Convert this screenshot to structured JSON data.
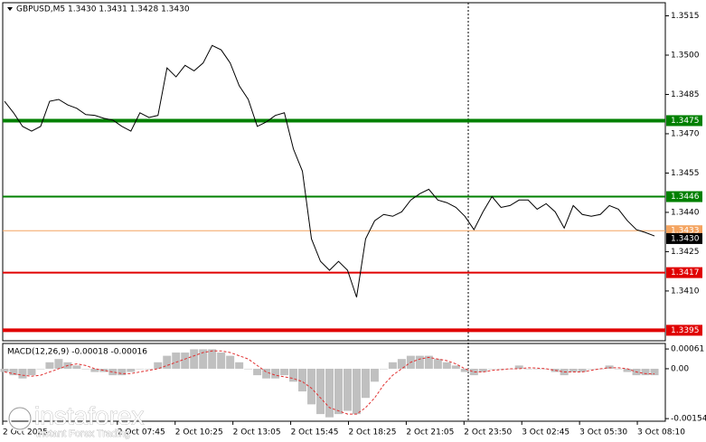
{
  "chart_data": [
    {
      "type": "line",
      "title": "GBPUSD,M5  1.3430 1.3431 1.3428 1.3430",
      "color": "#000000",
      "values": [
        1.34824,
        1.3478,
        1.34728,
        1.3471,
        1.34728,
        1.34824,
        1.34831,
        1.3481,
        1.34797,
        1.34773,
        1.3477,
        1.34759,
        1.34752,
        1.34728,
        1.3471,
        1.3478,
        1.34762,
        1.3477,
        1.34951,
        1.34917,
        1.34961,
        1.3494,
        1.3497,
        1.35037,
        1.3502,
        1.3497,
        1.34883,
        1.34831,
        1.34728,
        1.34745,
        1.3477,
        1.3478,
        1.34642,
        1.34557,
        1.34299,
        1.34213,
        1.34179,
        1.34213,
        1.34179,
        1.34076,
        1.34299,
        1.34368,
        1.34392,
        1.34385,
        1.34402,
        1.34447,
        1.34471,
        1.34488,
        1.34447,
        1.34437,
        1.34419,
        1.34385,
        1.34334,
        1.34402,
        1.3446,
        1.34419,
        1.34426,
        1.34447,
        1.34447,
        1.34412,
        1.34433,
        1.34402,
        1.3434,
        1.34426,
        1.34392,
        1.34385,
        1.34392,
        1.34426,
        1.34412,
        1.34368,
        1.34334,
        1.34323,
        1.3431
      ],
      "ylim": [
        1.3391,
        1.352
      ],
      "yticks": [
        1.3515,
        {
          "value": 1.35,
          "label": "1.3500"
        },
        1.3485,
        {
          "value": 1.347,
          "label": "1.3470"
        },
        1.3455,
        {
          "value": 1.344,
          "label": "1.3440"
        },
        1.3425,
        {
          "value": 1.341,
          "label": "1.3410"
        }
      ],
      "xlim": [
        -0.2,
        73.2
      ],
      "xticks": [
        {
          "value": -0.2,
          "label": "2 Oct 2025"
        },
        {
          "value": 12.5,
          "label": "2 Oct 07:45"
        },
        {
          "value": 18.9,
          "label": "2 Oct 10:25"
        },
        {
          "value": 25.3,
          "label": "2 Oct 13:05"
        },
        {
          "value": 31.7,
          "label": "2 Oct 15:45"
        },
        {
          "value": 38.1,
          "label": "2 Oct 18:25"
        },
        {
          "value": 44.5,
          "label": "2 Oct 21:05"
        },
        {
          "value": 50.9,
          "label": "2 Oct 23:50"
        },
        {
          "value": 57.3,
          "label": "3 Oct 02:45"
        },
        {
          "value": 63.7,
          "label": "3 Oct 05:30"
        },
        {
          "value": 70.1,
          "label": "3 Oct 08:10"
        }
      ],
      "levels": [
        {
          "value": 1.3475,
          "label": "1.3475",
          "color": "#008000",
          "width": 4
        },
        {
          "value": 1.3446,
          "label": "1.3446",
          "color": "#008000",
          "width": 2
        },
        {
          "value": 1.3433,
          "label": "1.3433",
          "color": "#f4a460",
          "width": 1
        },
        {
          "value": 1.343,
          "label": "1.3430",
          "color": "#000000",
          "width": 0
        },
        {
          "value": 1.3417,
          "label": "1.3417",
          "color": "#e00000",
          "width": 2
        },
        {
          "value": 1.3395,
          "label": "1.3395",
          "color": "#e00000",
          "width": 4
        }
      ]
    },
    {
      "type": "macd",
      "title": "MACD(12,26,9) -0.00018 -0.00016",
      "ylim": [
        -0.00162,
        0.00078
      ],
      "yticks": [
        0.00061,
        {
          "value": 0,
          "label": "0.00"
        },
        -0.00154
      ],
      "series": [
        {
          "color": "#c0c0c0",
          "values": [
            -0.0001,
            -0.0002,
            -0.0003,
            -0.0002,
            0,
            0.0002,
            0.0003,
            0.0002,
            0.0001,
            0,
            -0.0001,
            -0.0001,
            -0.0002,
            -0.0002,
            -0.0001,
            0,
            0,
            0.0002,
            0.0004,
            0.0005,
            0.0005,
            0.0006,
            0.0006,
            0.0006,
            0.0005,
            0.0004,
            0.0002,
            0,
            -0.0002,
            -0.0003,
            -0.0003,
            -0.0002,
            -0.0004,
            -0.0007,
            -0.0011,
            -0.0014,
            -0.0015,
            -0.0014,
            -0.0013,
            -0.0014,
            -0.0009,
            -0.0004,
            0,
            0.0002,
            0.0003,
            0.0004,
            0.0004,
            0.0004,
            0.0003,
            0.0002,
            0.0001,
            -0.0001,
            -0.0002,
            -0.0001,
            0,
            0,
            0,
            0.0001,
            0,
            0,
            0,
            -0.0001,
            -0.0002,
            -0.0001,
            -0.0001,
            0,
            0,
            0.0001,
            0,
            -0.0001,
            -0.0002,
            -0.0002,
            -0.0002
          ]
        },
        {
          "color": "#e03030",
          "values": [
            -0.0001,
            -0.00015,
            -0.0002,
            -0.00023,
            -0.0002,
            -0.0001,
            0,
            0.0001,
            0.00015,
            0.0001,
            0,
            -5e-05,
            -0.0001,
            -0.00015,
            -0.00015,
            -0.0001,
            -5e-05,
            0,
            0.0001,
            0.0002,
            0.0003,
            0.0004,
            0.0005,
            0.00055,
            0.00055,
            0.0005,
            0.0004,
            0.0003,
            0.0001,
            -0.0001,
            -0.0002,
            -0.00025,
            -0.0003,
            -0.0004,
            -0.0006,
            -0.0009,
            -0.0012,
            -0.0013,
            -0.0014,
            -0.0014,
            -0.0012,
            -0.0009,
            -0.0005,
            -0.0002,
            0,
            0.0002,
            0.0003,
            0.00035,
            0.0003,
            0.00025,
            0.00015,
            0,
            -0.0001,
            -0.0001,
            -5e-05,
            -3e-05,
            0,
            0,
            3e-05,
            2e-05,
            0,
            -5e-05,
            -0.0001,
            -0.0001,
            -0.0001,
            -5e-05,
            0,
            3e-05,
            3e-05,
            0,
            -0.0001,
            -0.00015,
            -0.00016
          ]
        }
      ]
    }
  ],
  "logo": {
    "name": "instaforex",
    "tagline": "Instant Forex Trading"
  }
}
